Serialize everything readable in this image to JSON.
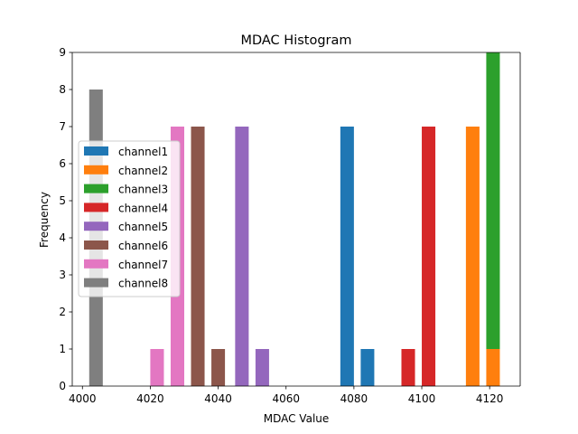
{
  "chart_data": {
    "type": "bar",
    "title": "MDAC Histogram",
    "xlabel": "MDAC Value",
    "ylabel": "Frequency",
    "xlim": [
      3997,
      4129
    ],
    "ylim": [
      0,
      9
    ],
    "xticks": [
      4000,
      4020,
      4040,
      4060,
      4080,
      4100,
      4120
    ],
    "yticks": [
      0,
      1,
      2,
      3,
      4,
      5,
      6,
      7,
      8,
      9
    ],
    "bar_width": 4,
    "legend_position": "center-left",
    "grid": false,
    "series": [
      {
        "name": "channel1",
        "color": "#1f77b4",
        "points": [
          {
            "x": 4078,
            "value": 7
          },
          {
            "x": 4084,
            "value": 1
          }
        ]
      },
      {
        "name": "channel2",
        "color": "#ff7f0e",
        "points": [
          {
            "x": 4115,
            "value": 7
          },
          {
            "x": 4121,
            "value": 1
          }
        ]
      },
      {
        "name": "channel3",
        "color": "#2ca02c",
        "points": [
          {
            "x": 4121,
            "value": 8,
            "bottom": 1
          }
        ]
      },
      {
        "name": "channel4",
        "color": "#d62728",
        "points": [
          {
            "x": 4096,
            "value": 1
          },
          {
            "x": 4102,
            "value": 7
          }
        ]
      },
      {
        "name": "channel5",
        "color": "#9467bd",
        "points": [
          {
            "x": 4047,
            "value": 7
          },
          {
            "x": 4053,
            "value": 1
          }
        ]
      },
      {
        "name": "channel6",
        "color": "#8c564b",
        "points": [
          {
            "x": 4034,
            "value": 7
          },
          {
            "x": 4040,
            "value": 1
          }
        ]
      },
      {
        "name": "channel7",
        "color": "#e377c2",
        "points": [
          {
            "x": 4022,
            "value": 1
          },
          {
            "x": 4028,
            "value": 7
          }
        ]
      },
      {
        "name": "channel8",
        "color": "#7f7f7f",
        "points": [
          {
            "x": 4004,
            "value": 8
          }
        ]
      }
    ]
  }
}
